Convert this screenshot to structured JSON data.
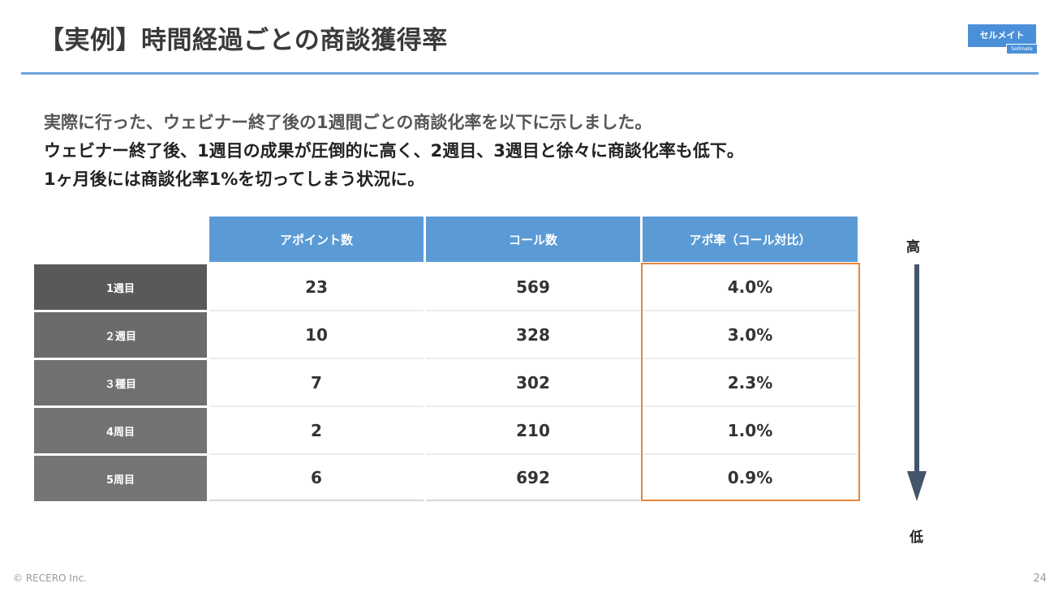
{
  "title": "【実例】時間経過ごとの商談獲得率",
  "logo": {
    "main": "セルメイト",
    "sub": "Sellmate",
    "color": "#4a90d9"
  },
  "intro": {
    "line1": "実際に行った、ウェビナー終了後の1週間ごとの商談化率を以下に示しました。",
    "line2": "ウェビナー終了後、1週目の成果が圧倒的に高く、2週目、3週目と徐々に商談化率も低下。",
    "line3": "1ヶ月後には商談化率1%を切ってしまう状況に。"
  },
  "table": {
    "headers": [
      "アポイント数",
      "コール数",
      "アポ率（コール対比）"
    ],
    "rows": [
      {
        "label": "1週目",
        "appointments": "23",
        "calls": "569",
        "rate": "4.0%"
      },
      {
        "label": "２週目",
        "appointments": "10",
        "calls": "328",
        "rate": "3.0%"
      },
      {
        "label": "３種目",
        "appointments": "7",
        "calls": "302",
        "rate": "2.3%"
      },
      {
        "label": "4周目",
        "appointments": "2",
        "calls": "210",
        "rate": "1.0%"
      },
      {
        "label": "5周目",
        "appointments": "6",
        "calls": "692",
        "rate": "0.9%"
      }
    ],
    "header_color": "#5b9bd5",
    "highlight_color": "#e8863a"
  },
  "arrow": {
    "high": "高",
    "low": "低",
    "color": "#44546a"
  },
  "footer": {
    "copyright": "© RECERO Inc.",
    "page": "24"
  }
}
